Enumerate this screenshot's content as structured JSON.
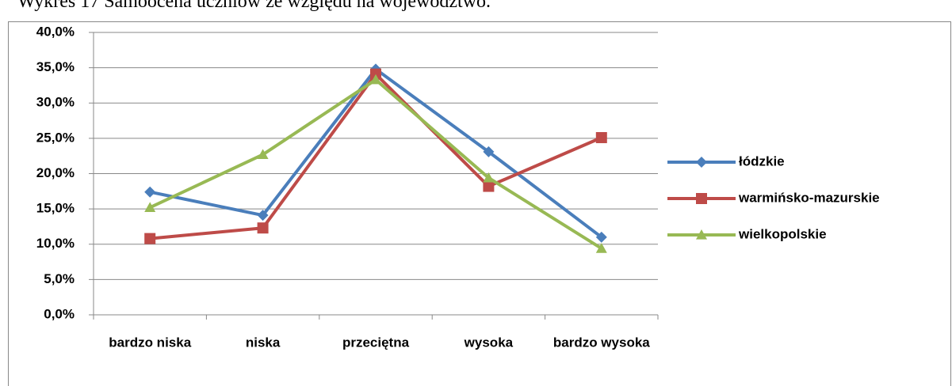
{
  "chart_data": {
    "type": "line",
    "title": "Wykres 17 Samoocena uczniów ze względu na województwo.",
    "categories": [
      "bardzo niska",
      "niska",
      "przeciętna",
      "wysoka",
      "bardzo wysoka"
    ],
    "series": [
      {
        "name": "łódzkie",
        "color": "#4a7ebb",
        "marker": "diamond",
        "values": [
          17.4,
          14.1,
          34.8,
          23.1,
          11.0
        ]
      },
      {
        "name": "warmińsko-mazurskie",
        "color": "#be4b48",
        "marker": "square",
        "values": [
          10.8,
          12.3,
          34.1,
          18.2,
          25.1
        ]
      },
      {
        "name": "wielkopolskie",
        "color": "#98b954",
        "marker": "triangle",
        "values": [
          15.2,
          22.7,
          33.3,
          19.4,
          9.4
        ]
      }
    ],
    "ylim": [
      0,
      40
    ],
    "yticks": [
      {
        "value": 0,
        "label": "0,0%"
      },
      {
        "value": 5,
        "label": "5,0%"
      },
      {
        "value": 10,
        "label": "10,0%"
      },
      {
        "value": 15,
        "label": "15,0%"
      },
      {
        "value": 20,
        "label": "20,0%"
      },
      {
        "value": 25,
        "label": "25,0%"
      },
      {
        "value": 30,
        "label": "30,0%"
      },
      {
        "value": 35,
        "label": "35,0%"
      },
      {
        "value": 40,
        "label": "40,0%"
      }
    ],
    "grid": true,
    "legend": "right"
  }
}
